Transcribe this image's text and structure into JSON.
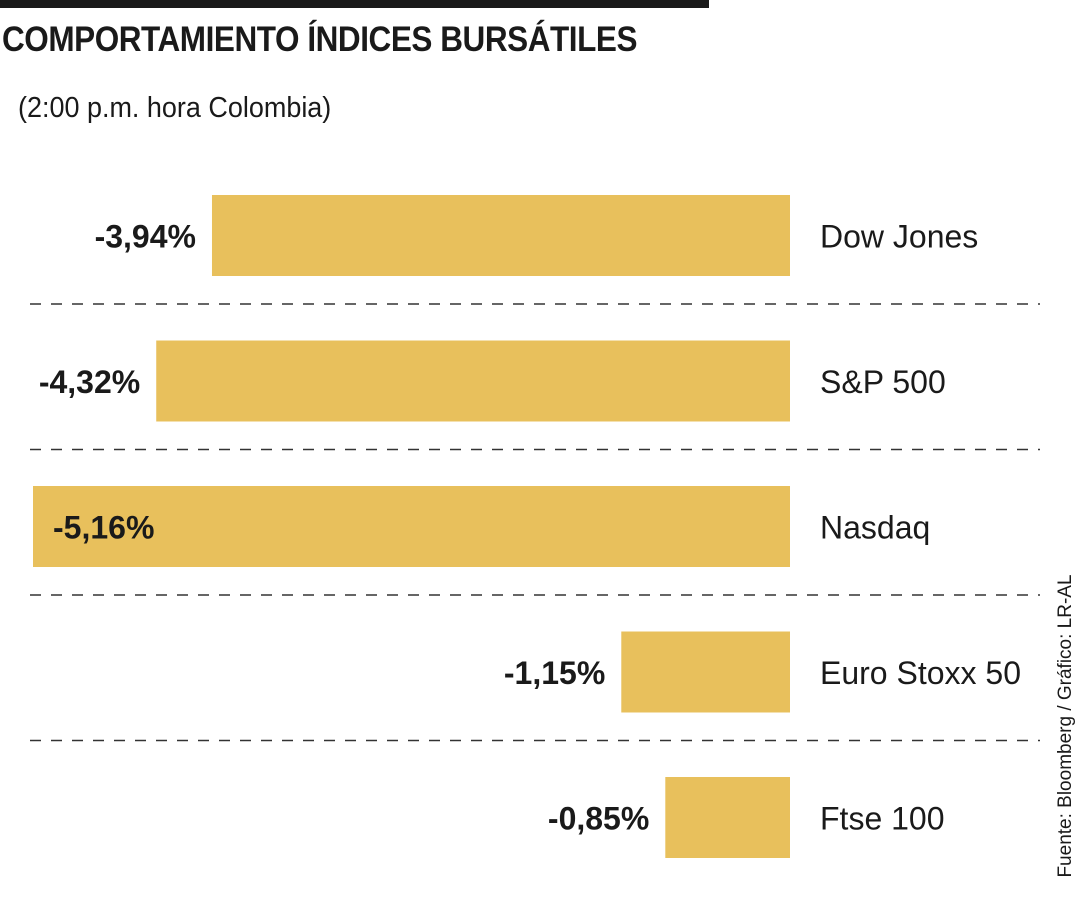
{
  "header": {
    "title": "COMPORTAMIENTO ÍNDICES BURSÁTILES",
    "subtitle": "(2:00 p.m. hora Colombia)"
  },
  "source": "Fuente: Bloomberg / Gráfico: LR-AL",
  "colors": {
    "bar": "#e8c05c",
    "text": "#1a1a1a",
    "divider": "#333333"
  },
  "chart_data": {
    "type": "bar",
    "orientation": "horizontal",
    "title": "COMPORTAMIENTO ÍNDICES BURSÁTILES",
    "subtitle": "(2:00 p.m. hora Colombia)",
    "categories": [
      "Dow Jones",
      "S&P 500",
      "Nasdaq",
      "Euro Stoxx 50",
      "Ftse 100"
    ],
    "values": [
      -3.94,
      -4.32,
      -5.16,
      -1.15,
      -0.85
    ],
    "value_labels": [
      "-3,94%",
      "-4,32%",
      "-5,16%",
      "-1,15%",
      "-0,85%"
    ],
    "xlim": [
      -5.16,
      0
    ],
    "grid": false,
    "legend": "none"
  }
}
